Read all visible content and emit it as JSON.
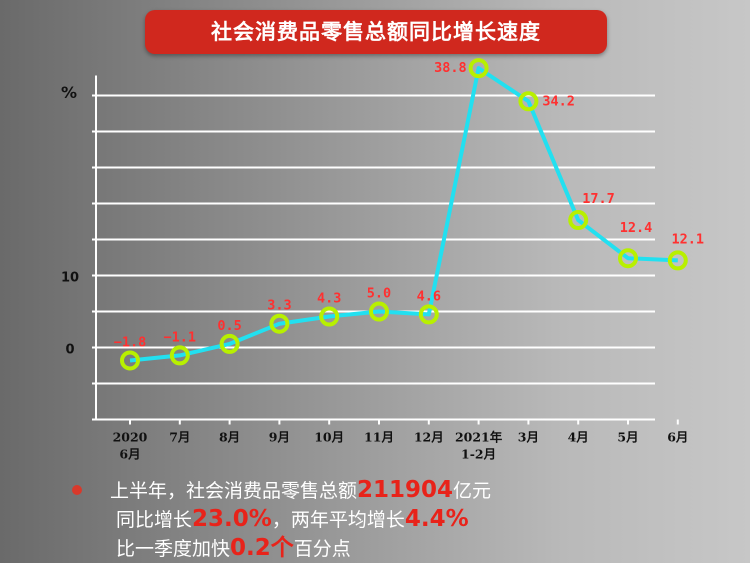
{
  "title": "社会消费品零售总额同比增长速度",
  "chart_data": {
    "type": "line",
    "unit_label": "%",
    "categories": [
      "2020\n6月",
      "7月",
      "8月",
      "9月",
      "10月",
      "11月",
      "12月",
      "2021年\n1-2月",
      "3月",
      "4月",
      "5月",
      "6月"
    ],
    "values": [
      -1.8,
      -1.1,
      0.5,
      3.3,
      4.3,
      5.0,
      4.6,
      38.8,
      34.2,
      17.7,
      12.4,
      12.1
    ],
    "value_labels": [
      "−1.8",
      "−1.1",
      "0.5",
      "3.3",
      "4.3",
      "5.0",
      "4.6",
      "38.8",
      "34.2",
      "17.7",
      "12.4",
      "12.1"
    ],
    "y_ticks": [
      {
        "value": 0,
        "label": "0"
      },
      {
        "value": 10,
        "label": "10"
      }
    ],
    "line_color": "#22e0f0",
    "marker_color": "#b8f000",
    "label_color": "#ff3030"
  },
  "notes": {
    "line1_a": "上半年，社会消费品零售总额",
    "line1_b": "211904",
    "line1_c": "亿元",
    "line2_a": "同比增长",
    "line2_b": "23.0%",
    "line2_c": "，两年平均增长",
    "line2_d": "4.4%",
    "line3_a": "比一季度加快",
    "line3_b": "0.2个",
    "line3_c": "百分点"
  }
}
